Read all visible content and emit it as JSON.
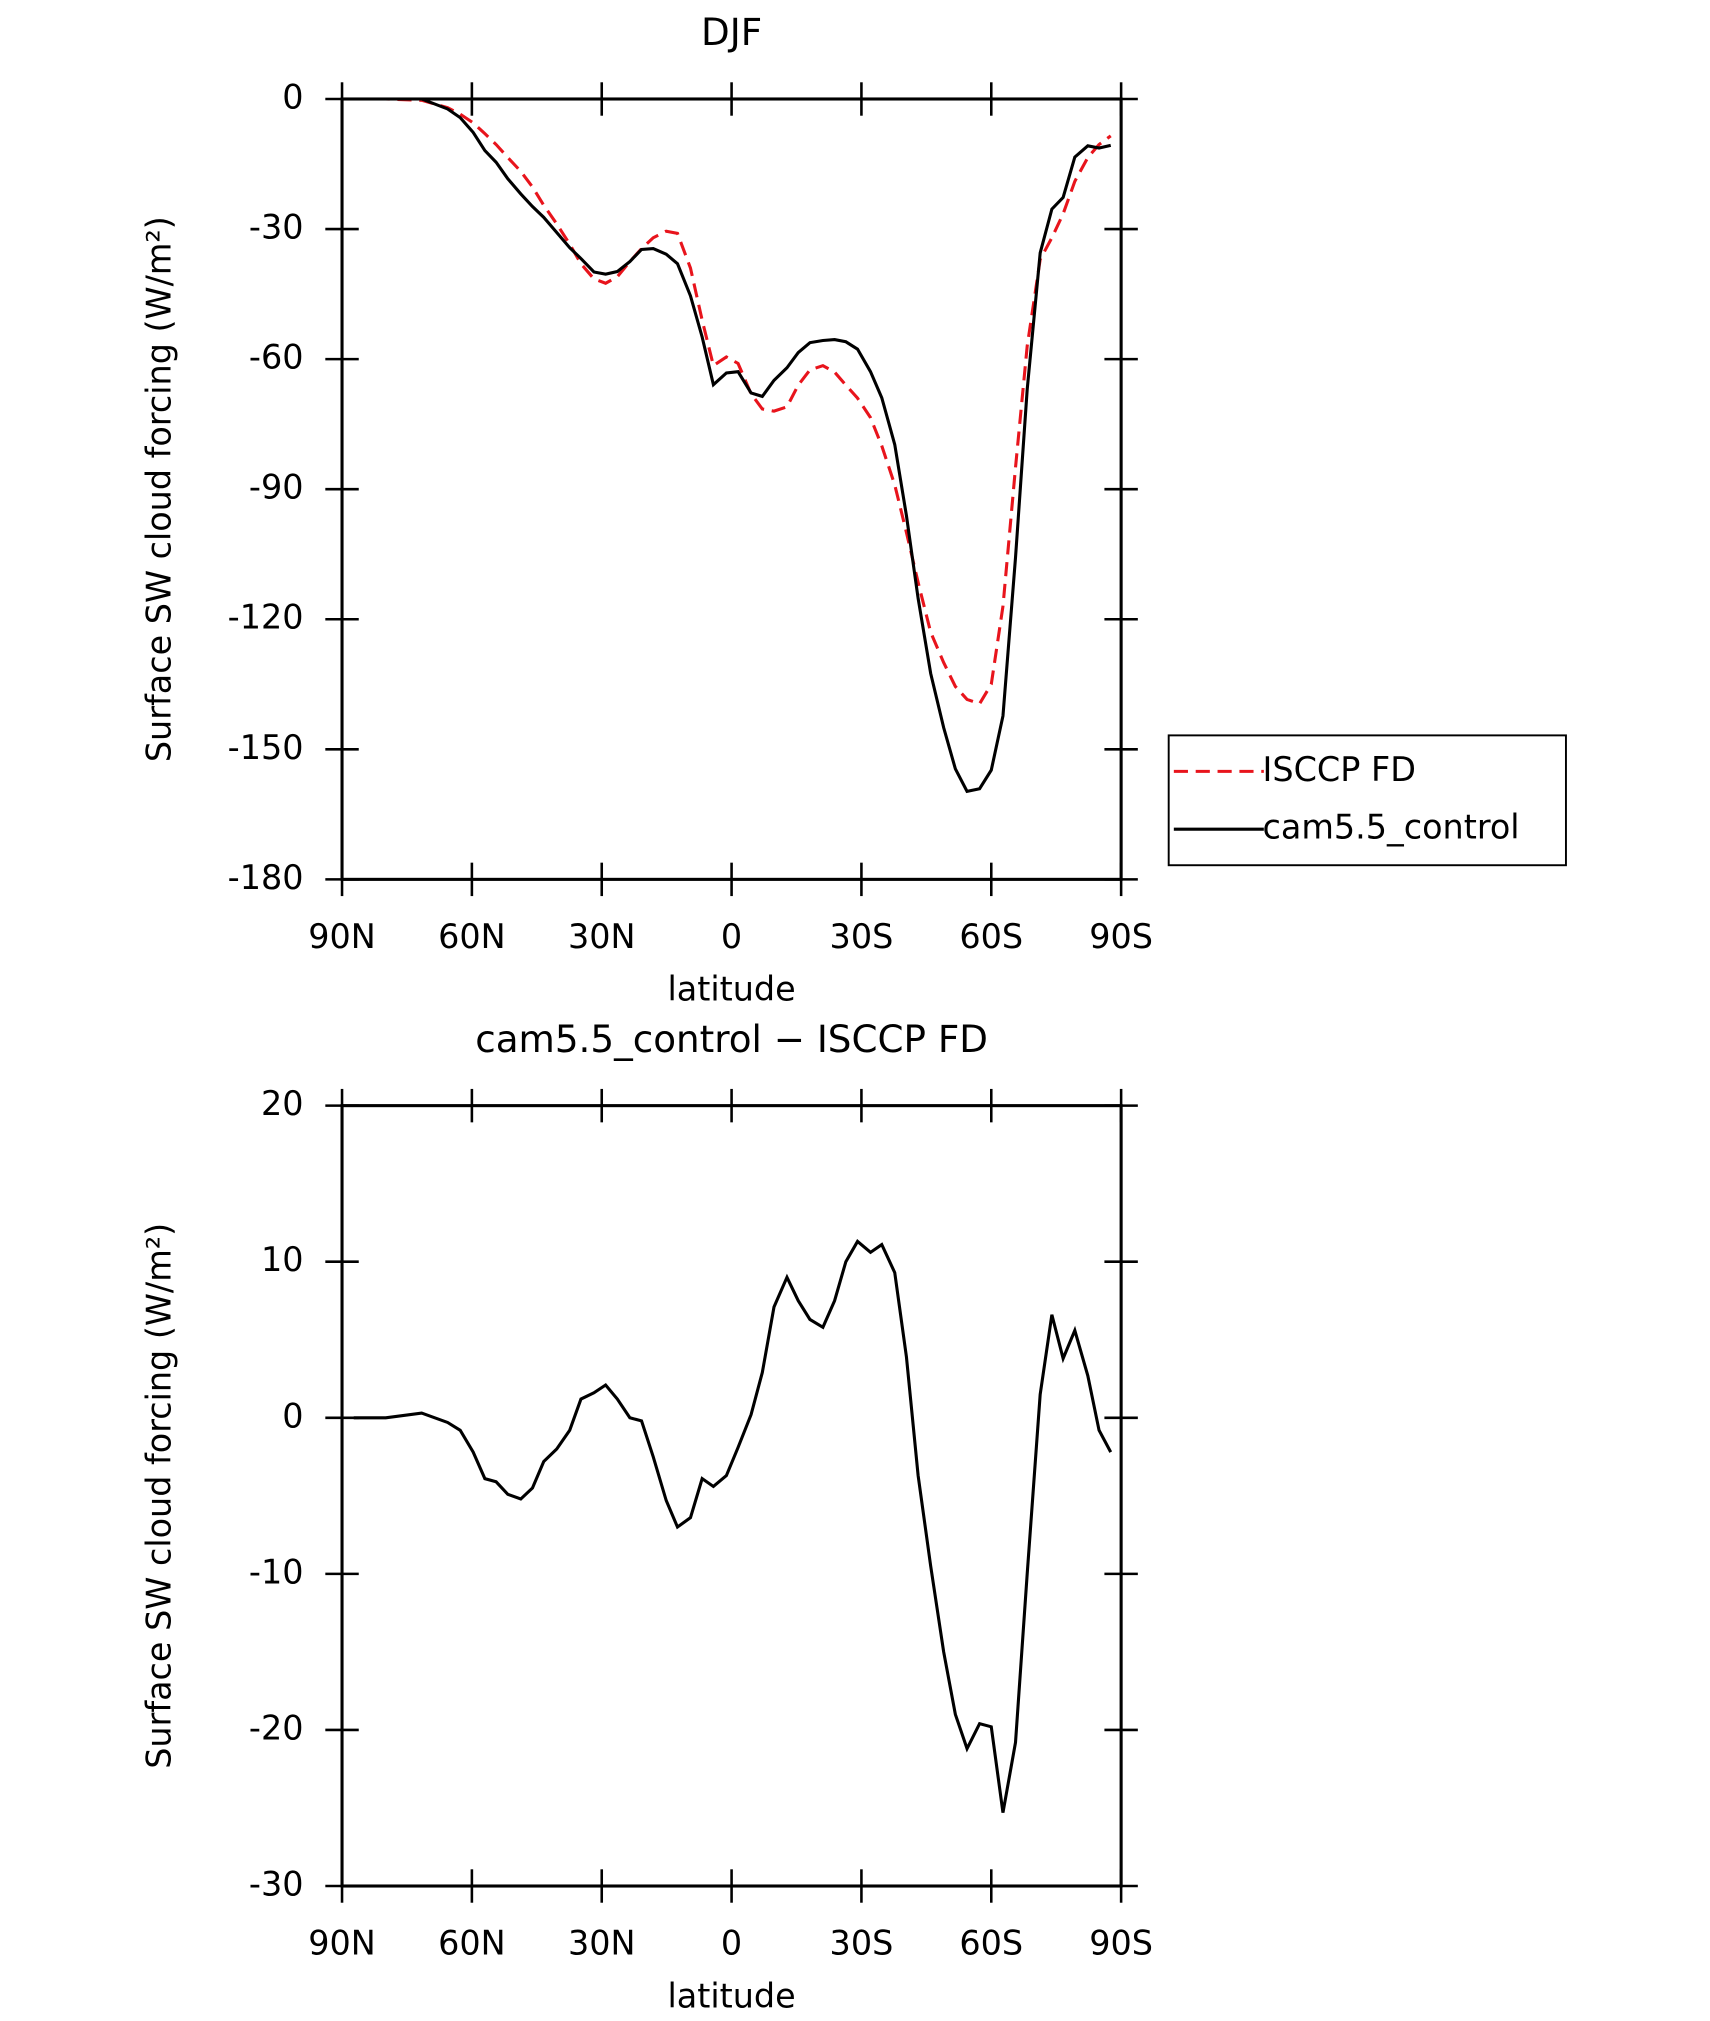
{
  "chart_data": [
    {
      "type": "line",
      "title": "DJF",
      "xlabel": "latitude",
      "ylabel": "Surface SW cloud forcing (W/m²)",
      "xlim": [
        90,
        -90
      ],
      "xticks": [
        {
          "value": 90,
          "label": "90N"
        },
        {
          "value": 60,
          "label": "60N"
        },
        {
          "value": 30,
          "label": "30N"
        },
        0,
        {
          "value": -30,
          "label": "30S"
        },
        {
          "value": -60,
          "label": "60S"
        },
        {
          "value": -90,
          "label": "90S"
        }
      ],
      "ylim": [
        -180,
        0
      ],
      "yticks": [
        -180,
        -150,
        -120,
        -90,
        -60,
        -30,
        0
      ],
      "legend": "right",
      "x": [
        87.3,
        79.9,
        71.6,
        65.6,
        62.7,
        59.7,
        57,
        54.4,
        51.7,
        48.7,
        46,
        43.4,
        40.4,
        37.4,
        34.8,
        31.8,
        29.1,
        26.4,
        23.5,
        20.8,
        18.1,
        15.1,
        12.5,
        9.5,
        6.8,
        4.2,
        1.2,
        -1.5,
        -4.5,
        -7.1,
        -9.8,
        -12.8,
        -15.4,
        -18.1,
        -21.1,
        -23.8,
        -26.4,
        -29.1,
        -32.1,
        -34.7,
        -37.7,
        -40.4,
        -43.1,
        -46,
        -49,
        -51.7,
        -54.4,
        -57.3,
        -60,
        -62.7,
        -65.6,
        -68.3,
        -71.3,
        -74,
        -76.6,
        -79.3,
        -82.3,
        -84.9,
        -87.6
      ],
      "series": [
        {
          "name": "ISCCP FD",
          "color": "#e8141c",
          "linestyle": "dashed",
          "values": [
            0,
            0,
            -0.3,
            -2,
            -3.5,
            -5.5,
            -8,
            -10.5,
            -13.5,
            -16.7,
            -20.3,
            -24.5,
            -28.8,
            -33.5,
            -38,
            -41.5,
            -42.5,
            -41,
            -37.5,
            -34.5,
            -32,
            -30.5,
            -31,
            -39,
            -51,
            -61.5,
            -59.5,
            -61,
            -68,
            -71.5,
            -72,
            -71,
            -66,
            -62.5,
            -61.5,
            -63,
            -66,
            -69,
            -73.5,
            -80,
            -89,
            -100,
            -111.5,
            -123,
            -130,
            -135.5,
            -138.5,
            -139.5,
            -135,
            -117,
            -85,
            -57,
            -37,
            -32,
            -26.5,
            -19,
            -13.5,
            -10.5,
            -8.5
          ]
        },
        {
          "name": "cam5.5_control",
          "color": "#000000",
          "linestyle": "solid",
          "values": [
            0,
            0,
            0,
            -2.3,
            -4.3,
            -7.7,
            -11.9,
            -14.6,
            -18.4,
            -21.9,
            -24.8,
            -27.3,
            -30.8,
            -34.3,
            -36.8,
            -39.9,
            -40.4,
            -39.8,
            -37.5,
            -34.7,
            -34.5,
            -35.8,
            -38,
            -45.4,
            -54.9,
            -65.9,
            -63.2,
            -62.9,
            -67.8,
            -68.6,
            -64.9,
            -62,
            -58.5,
            -56.2,
            -55.7,
            -55.5,
            -56,
            -57.7,
            -62.9,
            -68.9,
            -79.7,
            -96.1,
            -115.2,
            -132.5,
            -145,
            -154.5,
            -159.7,
            -159.1,
            -154.8,
            -142.3,
            -105.8,
            -67,
            -35.5,
            -25.4,
            -22.7,
            -13.4,
            -10.8,
            -11.3,
            -10.7
          ]
        }
      ]
    },
    {
      "type": "line",
      "title": "cam5.5_control − ISCCP FD",
      "xlabel": "latitude",
      "ylabel": "Surface SW cloud forcing (W/m²)",
      "xlim": [
        90,
        -90
      ],
      "xticks": [
        {
          "value": 90,
          "label": "90N"
        },
        {
          "value": 60,
          "label": "60N"
        },
        {
          "value": 30,
          "label": "30N"
        },
        0,
        {
          "value": -30,
          "label": "30S"
        },
        {
          "value": -60,
          "label": "60S"
        },
        {
          "value": -90,
          "label": "90S"
        }
      ],
      "ylim": [
        -30,
        20
      ],
      "yticks": [
        -30,
        -20,
        -10,
        0,
        10,
        20
      ],
      "x": [
        87.3,
        79.9,
        71.6,
        65.6,
        62.7,
        59.7,
        57,
        54.4,
        51.7,
        48.7,
        46,
        43.4,
        40.4,
        37.4,
        34.8,
        31.8,
        29.1,
        26.4,
        23.5,
        20.8,
        18.1,
        15.1,
        12.5,
        9.5,
        6.8,
        4.2,
        1.2,
        -1.5,
        -4.5,
        -7.1,
        -9.8,
        -12.8,
        -15.4,
        -18.1,
        -21.1,
        -23.8,
        -26.4,
        -29.1,
        -32.1,
        -34.7,
        -37.7,
        -40.4,
        -43.1,
        -46,
        -49,
        -51.7,
        -54.4,
        -57.3,
        -60,
        -62.7,
        -65.6,
        -68.3,
        -71.3,
        -74,
        -76.6,
        -79.3,
        -82.3,
        -84.9,
        -87.6
      ],
      "series": [
        {
          "color": "#000000",
          "linestyle": "solid",
          "values": [
            0,
            0,
            0.3,
            -0.3,
            -0.8,
            -2.2,
            -3.9,
            -4.1,
            -4.9,
            -5.2,
            -4.5,
            -2.8,
            -2,
            -0.8,
            1.2,
            1.6,
            2.1,
            1.2,
            0,
            -0.2,
            -2.5,
            -5.3,
            -7,
            -6.4,
            -3.9,
            -4.4,
            -3.7,
            -1.9,
            0.2,
            2.9,
            7.1,
            9,
            7.5,
            6.3,
            5.8,
            7.5,
            10,
            11.3,
            10.6,
            11.1,
            9.3,
            3.9,
            -3.7,
            -9.5,
            -15,
            -19,
            -21.2,
            -19.6,
            -19.8,
            -25.3,
            -20.8,
            -10,
            1.5,
            6.6,
            3.8,
            5.6,
            2.7,
            -0.8,
            -2.2
          ]
        }
      ]
    }
  ]
}
